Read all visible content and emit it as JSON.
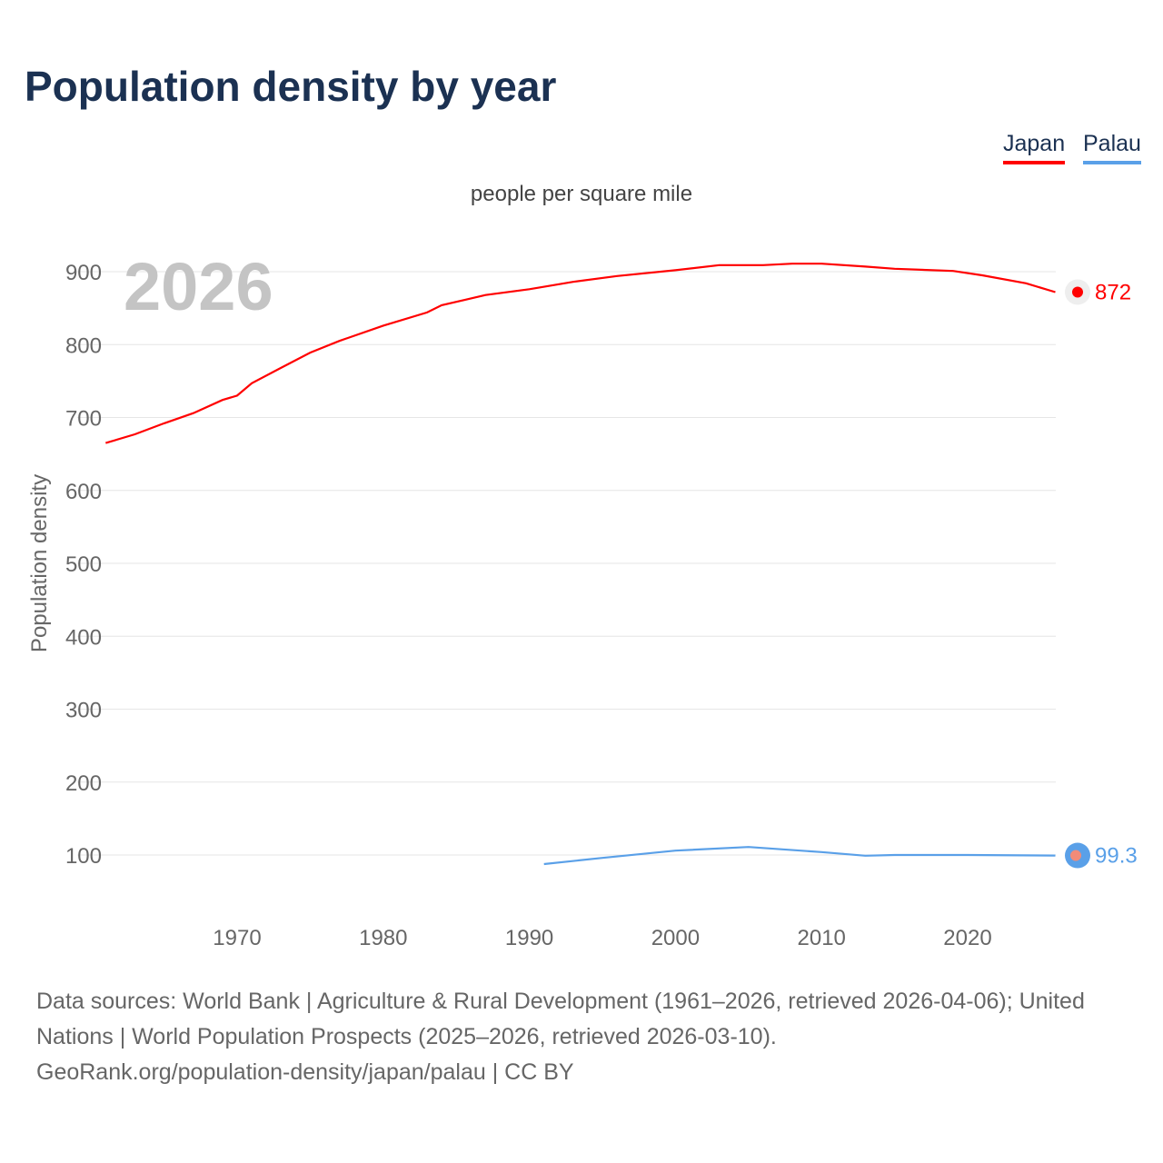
{
  "title": "Population density by year",
  "legend": [
    {
      "label": "Japan",
      "color": "#ff0000"
    },
    {
      "label": "Palau",
      "color": "#5aa0e8"
    }
  ],
  "chart_data": {
    "type": "line",
    "title": "Population density by year",
    "subtitle": "people per square mile",
    "ylabel": "Population density",
    "xlabel": "",
    "year_watermark": "2026",
    "xlim": [
      1961,
      2026
    ],
    "ylim": [
      20,
      960
    ],
    "xticks": [
      1970,
      1980,
      1990,
      2000,
      2010,
      2020
    ],
    "yticks": [
      100,
      200,
      300,
      400,
      500,
      600,
      700,
      800,
      900
    ],
    "grid": true,
    "legend_position": "top-right",
    "series": [
      {
        "name": "Japan",
        "color": "#ff0000",
        "end_label": "872",
        "x": [
          1961,
          1963,
          1965,
          1967,
          1969,
          1970,
          1971,
          1973,
          1975,
          1977,
          1980,
          1983,
          1984,
          1987,
          1990,
          1993,
          1996,
          2000,
          2003,
          2006,
          2008,
          2010,
          2013,
          2015,
          2019,
          2021,
          2024,
          2026
        ],
        "y": [
          665,
          677,
          692,
          706,
          724,
          730,
          747,
          768,
          789,
          805,
          826,
          844,
          854,
          868,
          876,
          886,
          894,
          902,
          909,
          909,
          911,
          911,
          907,
          904,
          901,
          895,
          884,
          872
        ]
      },
      {
        "name": "Palau",
        "color": "#5aa0e8",
        "end_label": "99.3",
        "x": [
          1991,
          1995,
          2000,
          2005,
          2010,
          2013,
          2015,
          2020,
          2026
        ],
        "y": [
          87.5,
          96,
          106,
          111,
          104,
          99,
          100,
          100,
          99.3
        ]
      }
    ]
  },
  "footer": {
    "line1": "Data sources: World Bank | Agriculture & Rural Development (1961–2026, retrieved 2026-04-06); United Nations | World Population Prospects (2025–2026, retrieved 2026-03-10).",
    "line2": "GeoRank.org/population-density/japan/palau | CC BY"
  }
}
